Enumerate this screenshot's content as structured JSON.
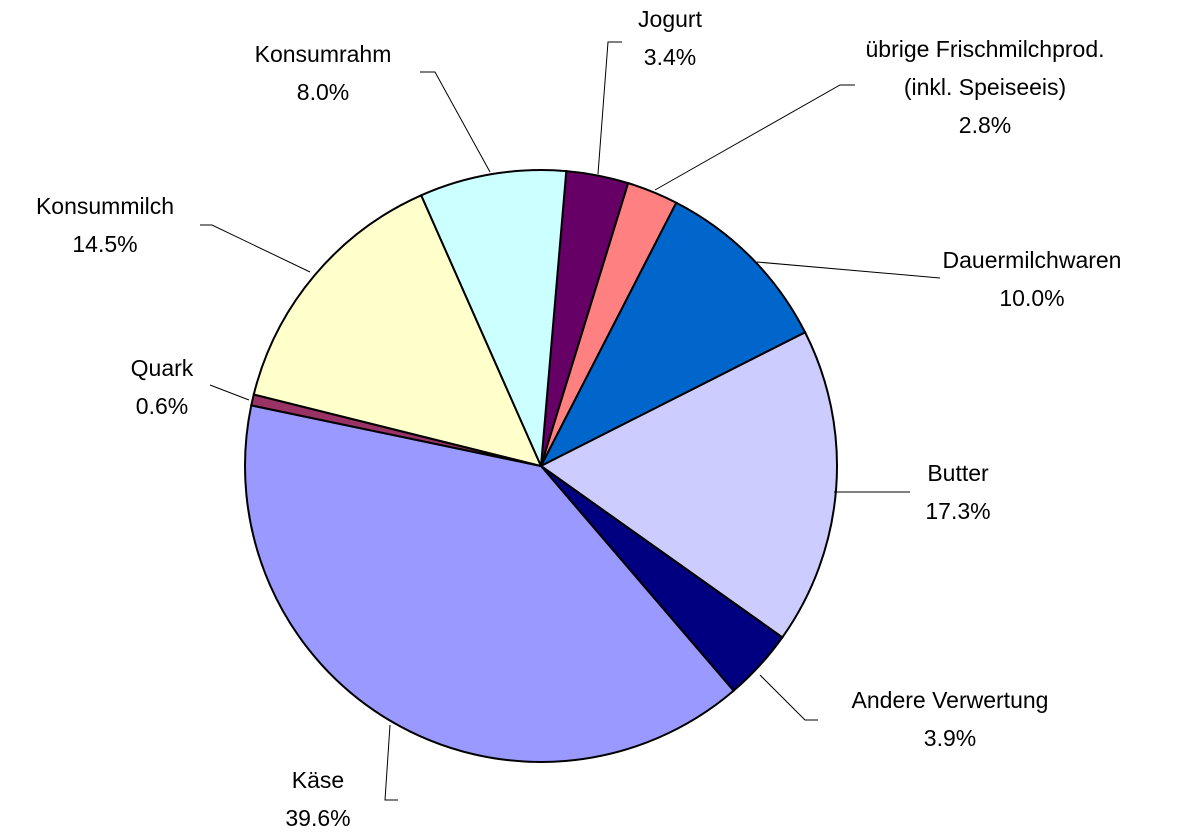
{
  "chart_data": {
    "type": "pie",
    "categories": [
      "Jogurt",
      "übrige Frischmilchprod. (inkl. Speiseeis)",
      "Dauermilchwaren",
      "Butter",
      "Andere Verwertung",
      "Käse",
      "Quark",
      "Konsummilch",
      "Konsumrahm"
    ],
    "values": [
      3.4,
      2.8,
      10.0,
      17.3,
      3.9,
      39.6,
      0.6,
      14.5,
      8.0
    ],
    "value_labels": [
      "3.4%",
      "2.8%",
      "10.0%",
      "17.3%",
      "3.9%",
      "39.6%",
      "0.6%",
      "14.5%",
      "8.0%"
    ],
    "colors": [
      "#660066",
      "#ff8080",
      "#0066cc",
      "#ccccff",
      "#000080",
      "#9999ff",
      "#993366",
      "#ffffcc",
      "#ccffff"
    ]
  }
}
